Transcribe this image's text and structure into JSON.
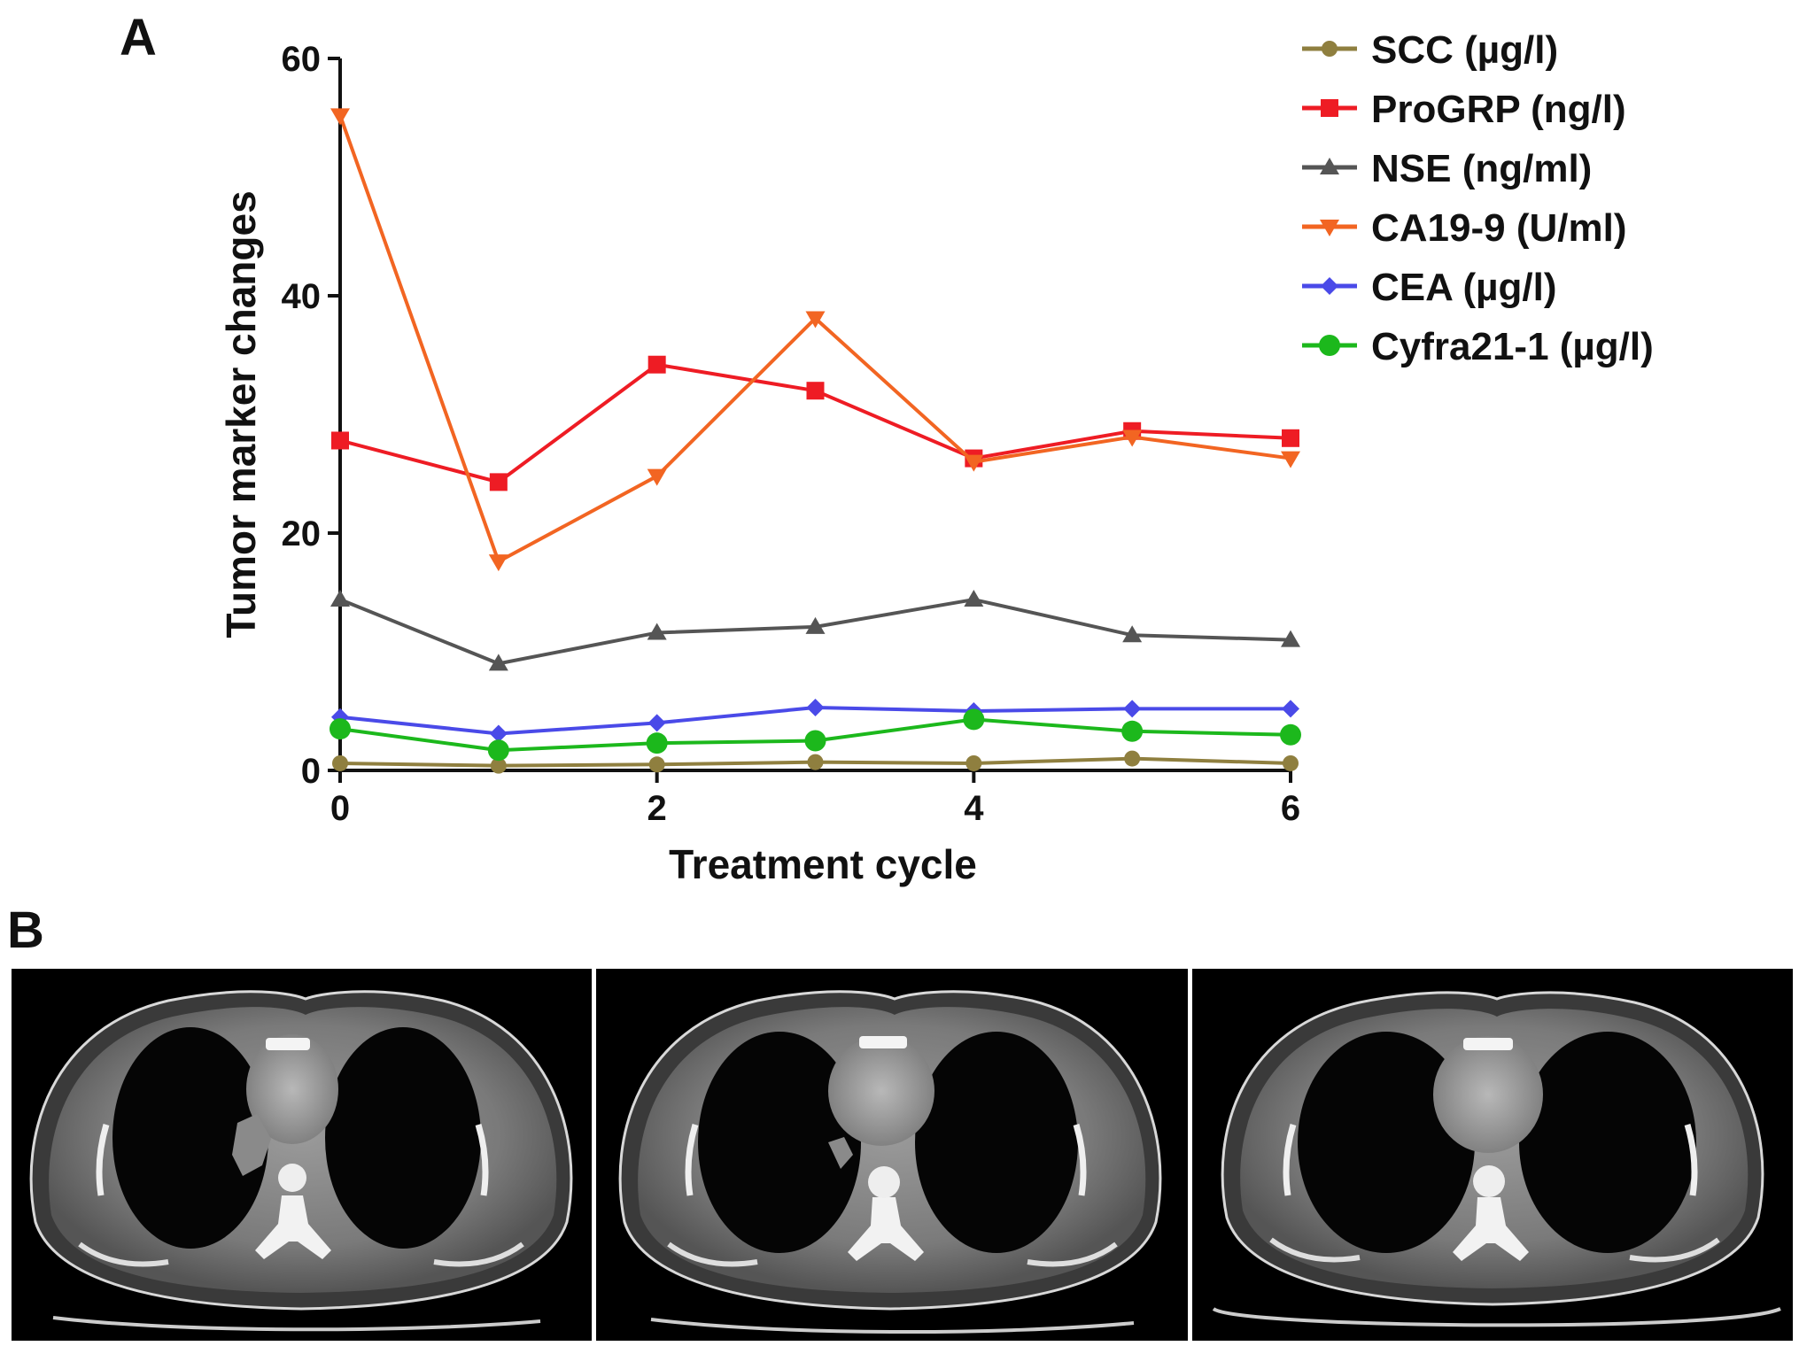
{
  "panels": {
    "a_label": "A",
    "b_label": "B"
  },
  "chart_data": {
    "type": "line",
    "title": "",
    "xlabel": "Treatment cycle",
    "ylabel": "Tumor marker changes",
    "x": [
      0,
      1,
      2,
      3,
      4,
      5,
      6
    ],
    "xlim": [
      0,
      6
    ],
    "ylim": [
      0,
      60
    ],
    "xticks": [
      0,
      2,
      4,
      6
    ],
    "yticks": [
      0,
      20,
      40,
      60
    ],
    "grid": false,
    "legend_position": "top-right",
    "series": [
      {
        "name": "SCC (µg/l)",
        "color": "#8f7f3f",
        "marker": "circle",
        "values": [
          0.6,
          0.4,
          0.5,
          0.7,
          0.6,
          1.0,
          0.6
        ]
      },
      {
        "name": "ProGRP (ng/l)",
        "color": "#ee1c24",
        "marker": "square",
        "values": [
          27.8,
          24.3,
          34.2,
          32.0,
          26.3,
          28.6,
          28.0
        ]
      },
      {
        "name": "NSE (ng/ml)",
        "color": "#555555",
        "marker": "triangle-up",
        "values": [
          14.4,
          9.0,
          11.6,
          12.1,
          14.4,
          11.4,
          11.0
        ]
      },
      {
        "name": "CA19-9 (U/ml)",
        "color": "#f26522",
        "marker": "triangle-down",
        "values": [
          55.2,
          17.6,
          24.8,
          38.1,
          26.0,
          28.1,
          26.3
        ]
      },
      {
        "name": "CEA (µg/l)",
        "color": "#4a4ae8",
        "marker": "diamond",
        "values": [
          4.5,
          3.1,
          4.0,
          5.3,
          5.0,
          5.2,
          5.2
        ]
      },
      {
        "name": "Cyfra21-1 (µg/l)",
        "color": "#1cb81c",
        "marker": "circle-large",
        "values": [
          3.5,
          1.7,
          2.3,
          2.5,
          4.3,
          3.3,
          3.0
        ]
      }
    ]
  },
  "ct_images": [
    {
      "id": "ct-scan-1"
    },
    {
      "id": "ct-scan-2"
    },
    {
      "id": "ct-scan-3"
    }
  ]
}
